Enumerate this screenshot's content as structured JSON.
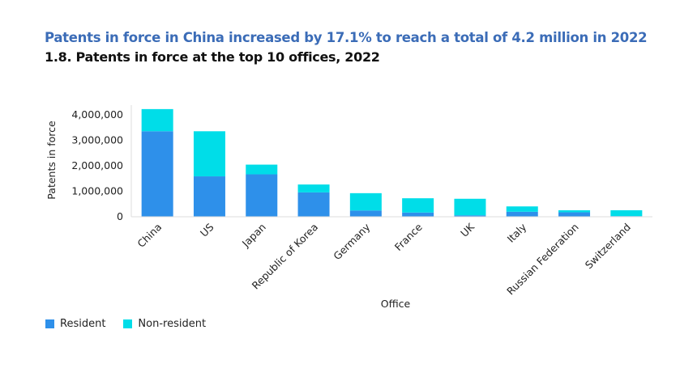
{
  "headline": "Patents in force in China increased by 17.1% to reach a total of 4.2 million in 2022",
  "chart_data": {
    "type": "bar",
    "stacked": true,
    "title": "1.8. Patents in force at the top 10 offices, 2022",
    "xlabel": "Office",
    "ylabel": "Patents in force",
    "ylim": [
      0,
      4000000
    ],
    "yticks": [
      0,
      1000000,
      2000000,
      3000000,
      4000000
    ],
    "ytick_labels": [
      "0",
      "1,000,000",
      "2,000,000",
      "3,000,000",
      "4,000,000"
    ],
    "categories": [
      "China",
      "US",
      "Japan",
      "Republic of Korea",
      "Germany",
      "France",
      "UK",
      "Italy",
      "Russian Federation",
      "Switzerland"
    ],
    "series": [
      {
        "name": "Resident",
        "color": "#2e90ea",
        "values": [
          3340000,
          1570000,
          1650000,
          940000,
          230000,
          150000,
          40000,
          180000,
          160000,
          10000
        ]
      },
      {
        "name": "Non-resident",
        "color": "#00dde8",
        "values": [
          870000,
          1770000,
          380000,
          310000,
          680000,
          560000,
          650000,
          210000,
          80000,
          230000
        ]
      }
    ],
    "grid": false,
    "legend_position": "bottom-left"
  }
}
